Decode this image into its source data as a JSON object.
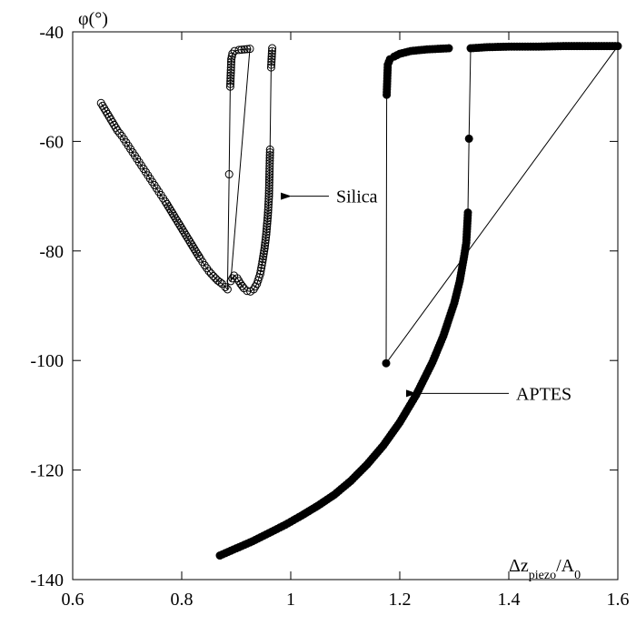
{
  "chart_data": {
    "type": "scatter",
    "xlabel": "Δz_piezo/A_0",
    "xlabel_parts": {
      "base": "Δz",
      "sub1": "piezo",
      "mid": "/A",
      "sub2": "0"
    },
    "ylabel": "φ(°)",
    "xlim": [
      0.6,
      1.6
    ],
    "ylim": [
      -140,
      -40
    ],
    "xticks": [
      0.6,
      0.8,
      1,
      1.2,
      1.4,
      1.6
    ],
    "xtick_labels": [
      "0.6",
      "0.8",
      "1",
      "1.2",
      "1.4",
      "1.6"
    ],
    "yticks": [
      -140,
      -120,
      -100,
      -80,
      -60,
      -40
    ],
    "ytick_labels": [
      "-140",
      "-120",
      "-100",
      "-80",
      "-60",
      "-40"
    ],
    "grid": false,
    "legend": "none",
    "series": [
      {
        "name": "Silica",
        "marker": "open-circle",
        "color": "#000000",
        "points": [
          [
            0.652,
            -53.0
          ],
          [
            0.658,
            -54.0
          ],
          [
            0.664,
            -55.0
          ],
          [
            0.67,
            -56.0
          ],
          [
            0.676,
            -57.0
          ],
          [
            0.682,
            -58.0
          ],
          [
            0.69,
            -59.0
          ],
          [
            0.698,
            -60.2
          ],
          [
            0.706,
            -61.4
          ],
          [
            0.714,
            -62.6
          ],
          [
            0.722,
            -63.8
          ],
          [
            0.73,
            -65.0
          ],
          [
            0.738,
            -66.2
          ],
          [
            0.746,
            -67.4
          ],
          [
            0.754,
            -68.6
          ],
          [
            0.762,
            -69.8
          ],
          [
            0.77,
            -71.0
          ],
          [
            0.778,
            -72.3
          ],
          [
            0.786,
            -73.6
          ],
          [
            0.794,
            -74.9
          ],
          [
            0.802,
            -76.2
          ],
          [
            0.81,
            -77.5
          ],
          [
            0.818,
            -78.8
          ],
          [
            0.826,
            -80.1
          ],
          [
            0.834,
            -81.4
          ],
          [
            0.842,
            -82.6
          ],
          [
            0.85,
            -83.7
          ],
          [
            0.858,
            -84.6
          ],
          [
            0.866,
            -85.4
          ],
          [
            0.874,
            -86.0
          ],
          [
            0.88,
            -86.6
          ],
          [
            0.884,
            -87.0
          ],
          [
            0.887,
            -66.0
          ],
          [
            0.889,
            -50.0
          ],
          [
            0.891,
            -45.0
          ],
          [
            0.893,
            -44.0
          ],
          [
            0.897,
            -43.5
          ],
          [
            0.905,
            -43.3
          ],
          [
            0.915,
            -43.2
          ],
          [
            0.925,
            -43.1
          ],
          [
            0.89,
            -85.5
          ],
          [
            0.896,
            -84.5
          ],
          [
            0.902,
            -85.0
          ],
          [
            0.908,
            -86.0
          ],
          [
            0.914,
            -86.8
          ],
          [
            0.92,
            -87.3
          ],
          [
            0.926,
            -87.4
          ],
          [
            0.932,
            -87.0
          ],
          [
            0.938,
            -86.0
          ],
          [
            0.944,
            -84.2
          ],
          [
            0.948,
            -82.0
          ],
          [
            0.952,
            -79.5
          ],
          [
            0.955,
            -77.0
          ],
          [
            0.958,
            -73.5
          ],
          [
            0.96,
            -70.0
          ],
          [
            0.962,
            -61.5
          ],
          [
            0.964,
            -46.5
          ],
          [
            0.966,
            -43.0
          ]
        ]
      },
      {
        "name": "APTES",
        "marker": "filled-circle",
        "color": "#000000",
        "points": [
          [
            0.87,
            -135.6
          ],
          [
            0.9,
            -134.3
          ],
          [
            0.93,
            -133.0
          ],
          [
            0.96,
            -131.5
          ],
          [
            0.99,
            -130.0
          ],
          [
            1.02,
            -128.3
          ],
          [
            1.05,
            -126.5
          ],
          [
            1.08,
            -124.5
          ],
          [
            1.11,
            -122.0
          ],
          [
            1.14,
            -119.0
          ],
          [
            1.17,
            -115.5
          ],
          [
            1.2,
            -111.3
          ],
          [
            1.23,
            -106.3
          ],
          [
            1.26,
            -100.3
          ],
          [
            1.28,
            -95.5
          ],
          [
            1.3,
            -89.5
          ],
          [
            1.31,
            -85.5
          ],
          [
            1.318,
            -81.0
          ],
          [
            1.322,
            -78.5
          ],
          [
            1.325,
            -73.0
          ],
          [
            1.327,
            -59.5
          ],
          [
            1.33,
            -43.0
          ],
          [
            1.36,
            -42.8
          ],
          [
            1.4,
            -42.7
          ],
          [
            1.45,
            -42.7
          ],
          [
            1.5,
            -42.6
          ],
          [
            1.55,
            -42.6
          ],
          [
            1.6,
            -42.6
          ],
          [
            1.175,
            -100.5
          ],
          [
            1.176,
            -51.5
          ],
          [
            1.178,
            -46.0
          ],
          [
            1.182,
            -45.0
          ],
          [
            1.19,
            -44.5
          ],
          [
            1.2,
            -44.0
          ],
          [
            1.22,
            -43.5
          ],
          [
            1.25,
            -43.2
          ],
          [
            1.29,
            -43.0
          ]
        ]
      }
    ],
    "annotations": [
      {
        "text": "Silica",
        "x": 1.0,
        "y": -70,
        "arrow_from": 1.07
      },
      {
        "text": "APTES",
        "x": 1.23,
        "y": -106,
        "arrow_from": 1.4
      }
    ]
  }
}
